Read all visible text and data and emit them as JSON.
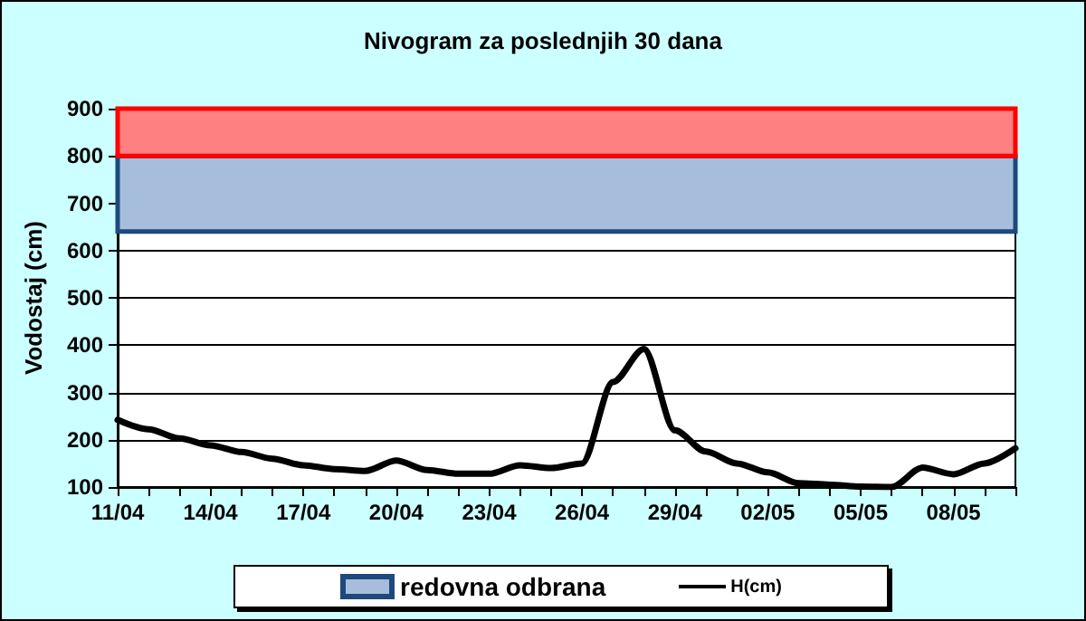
{
  "chart_data": {
    "type": "line",
    "title": "Nivogram za poslednjih 30 dana",
    "ylabel": "Vodostaj (cm)",
    "categories": [
      "11/04",
      null,
      null,
      "14/04",
      null,
      null,
      "17/04",
      null,
      null,
      "20/04",
      null,
      null,
      "23/04",
      null,
      null,
      "26/04",
      null,
      null,
      "29/04",
      null,
      null,
      "02/05",
      null,
      null,
      "05/05",
      null,
      null,
      "08/05",
      null,
      null
    ],
    "series": [
      {
        "name": "H(cm)",
        "color": "#000000",
        "values": [
          242,
          222,
          203,
          188,
          174,
          160,
          146,
          138,
          134,
          156,
          136,
          128,
          128,
          146,
          140,
          150,
          322,
          392,
          220,
          175,
          150,
          131,
          108,
          105,
          101,
          100,
          141,
          127,
          150,
          182
        ]
      }
    ],
    "ylim": [
      100,
      900
    ],
    "yticks": [
      100,
      200,
      300,
      400,
      500,
      600,
      700,
      800,
      900
    ],
    "grid": "y",
    "legend": "bottom",
    "marker": "none",
    "line_style": "solid",
    "bands": [
      {
        "axis": "y",
        "from": 640,
        "to": 800,
        "label": "redovna odbrana",
        "color": "#a6bedc"
      },
      {
        "axis": "y",
        "from": 800,
        "to": 900,
        "label": null,
        "color": "#ff8080"
      }
    ]
  }
}
